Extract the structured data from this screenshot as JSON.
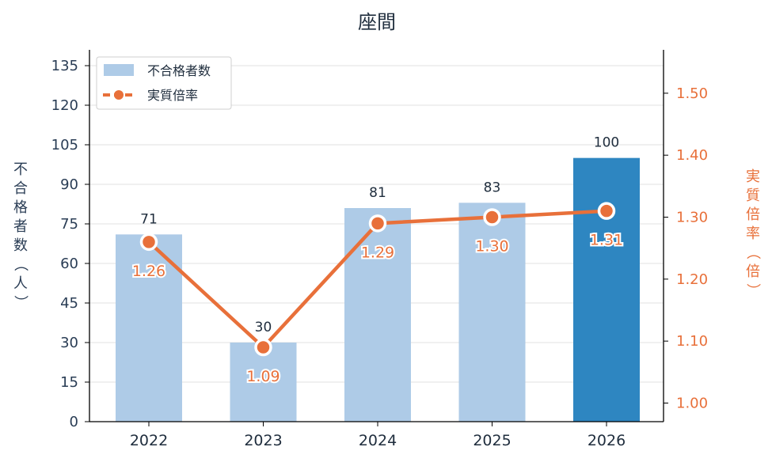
{
  "chart_data": {
    "type": "bar",
    "title": "座間",
    "categories": [
      "2022",
      "2023",
      "2024",
      "2025",
      "2026"
    ],
    "series": [
      {
        "name": "不合格者数",
        "kind": "bar",
        "axis": "left",
        "values": [
          71,
          30,
          81,
          83,
          100
        ],
        "colors": [
          "#aecbe7",
          "#aecbe7",
          "#aecbe7",
          "#aecbe7",
          "#2e86c1"
        ],
        "labels": [
          "71",
          "30",
          "81",
          "83",
          "100"
        ]
      },
      {
        "name": "実質倍率",
        "kind": "line",
        "axis": "right",
        "values": [
          1.26,
          1.09,
          1.29,
          1.3,
          1.31
        ],
        "color": "#e8703a",
        "labels": [
          "1.26",
          "1.09",
          "1.29",
          "1.30",
          "1.31"
        ]
      }
    ],
    "ylabel": "不合格者数（人）",
    "y2label": "実質倍率（倍）",
    "ylim": [
      0,
      141
    ],
    "y2lim": [
      0.97,
      1.57
    ],
    "yticks": [
      "0",
      "15",
      "30",
      "45",
      "60",
      "75",
      "90",
      "105",
      "120",
      "135"
    ],
    "y2ticks": [
      "1.00",
      "1.10",
      "1.20",
      "1.30",
      "1.40",
      "1.50"
    ],
    "grid": true,
    "legend_position": "top-left"
  }
}
